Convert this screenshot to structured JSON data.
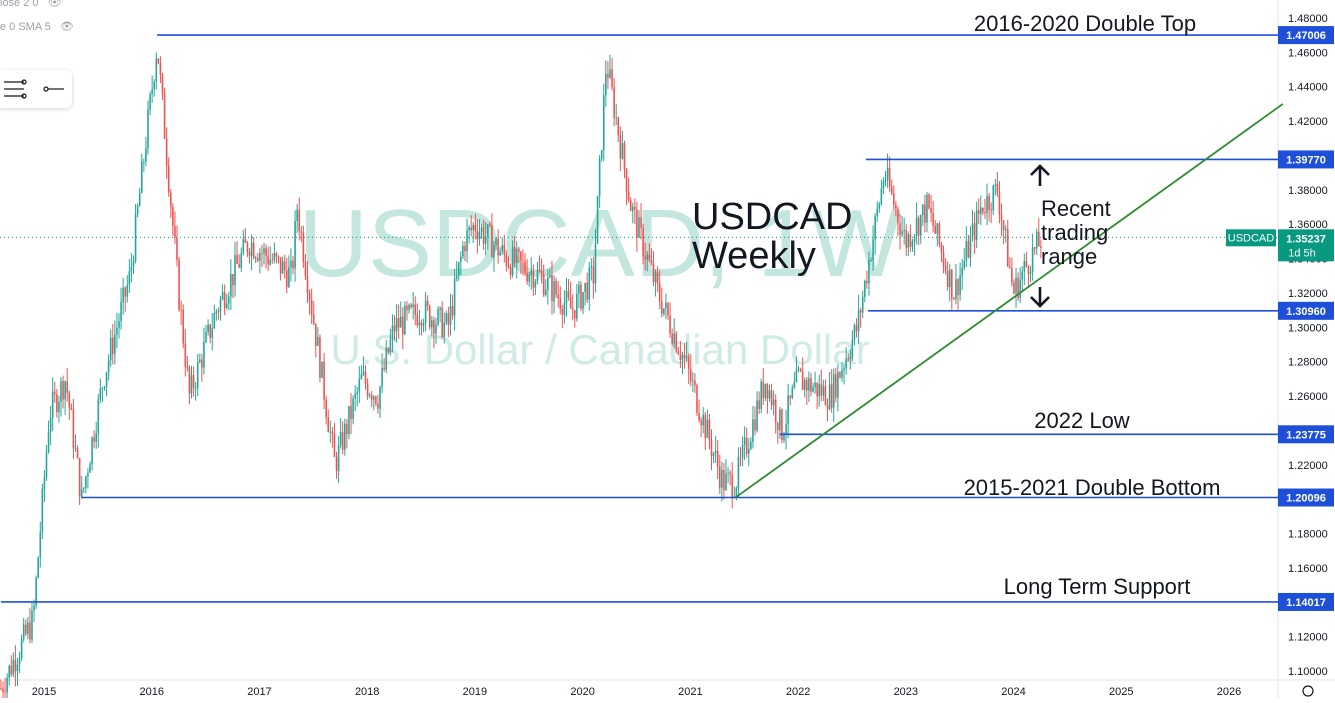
{
  "legend": {
    "close_label": "lose 2 0",
    "sma_label": "e 0 SMA 5"
  },
  "watermark": {
    "symbol": "USDCAD, 1W",
    "description": "U.S. Dollar / Canadian Dollar"
  },
  "price_tag": {
    "symbol": "USDCAD",
    "price": "1.35237",
    "countdown": "1d 5h",
    "color": "#089981"
  },
  "colors": {
    "up": "#26a69a",
    "down": "#ef5350",
    "hline": "#1e4fd8",
    "trendline": "#2e8b2e",
    "axis_text": "#131722"
  },
  "chart_data": {
    "type": "candlestick",
    "title": "USDCAD\nWeekly",
    "x_axis": {
      "ticks": [
        "2015",
        "2016",
        "2017",
        "2018",
        "2019",
        "2020",
        "2021",
        "2022",
        "2023",
        "2024",
        "2025",
        "2026"
      ]
    },
    "y_axis": {
      "range": [
        1.09,
        1.484
      ],
      "ticks": [
        "1.48000",
        "1.46000",
        "1.44000",
        "1.42000",
        "1.40000",
        "1.38000",
        "1.36000",
        "1.34000",
        "1.32000",
        "1.30000",
        "1.28000",
        "1.26000",
        "1.24000",
        "1.22000",
        "1.20000",
        "1.18000",
        "1.16000",
        "1.14000",
        "1.12000",
        "1.10000"
      ]
    },
    "price_path": [
      [
        2014.6,
        1.09
      ],
      [
        2014.9,
        1.13
      ],
      [
        2015.05,
        1.25
      ],
      [
        2015.2,
        1.27
      ],
      [
        2015.35,
        1.2
      ],
      [
        2015.55,
        1.27
      ],
      [
        2015.8,
        1.33
      ],
      [
        2016.05,
        1.465
      ],
      [
        2016.25,
        1.32
      ],
      [
        2016.35,
        1.26
      ],
      [
        2016.6,
        1.31
      ],
      [
        2016.9,
        1.35
      ],
      [
        2017.3,
        1.33
      ],
      [
        2017.35,
        1.37
      ],
      [
        2017.7,
        1.22
      ],
      [
        2017.95,
        1.27
      ],
      [
        2018.1,
        1.26
      ],
      [
        2018.25,
        1.3
      ],
      [
        2018.5,
        1.31
      ],
      [
        2018.75,
        1.3
      ],
      [
        2018.9,
        1.35
      ],
      [
        2019.0,
        1.36
      ],
      [
        2019.3,
        1.34
      ],
      [
        2019.6,
        1.33
      ],
      [
        2019.9,
        1.31
      ],
      [
        2020.1,
        1.33
      ],
      [
        2020.22,
        1.455
      ],
      [
        2020.45,
        1.37
      ],
      [
        2020.7,
        1.32
      ],
      [
        2020.95,
        1.28
      ],
      [
        2021.3,
        1.21
      ],
      [
        2021.42,
        1.21
      ],
      [
        2021.7,
        1.27
      ],
      [
        2021.85,
        1.24
      ],
      [
        2022.0,
        1.27
      ],
      [
        2022.3,
        1.26
      ],
      [
        2022.55,
        1.3
      ],
      [
        2022.8,
        1.39
      ],
      [
        2023.0,
        1.35
      ],
      [
        2023.2,
        1.37
      ],
      [
        2023.45,
        1.32
      ],
      [
        2023.7,
        1.37
      ],
      [
        2023.85,
        1.38
      ],
      [
        2024.0,
        1.32
      ],
      [
        2024.15,
        1.34
      ],
      [
        2024.27,
        1.352
      ]
    ],
    "annotations": {
      "horizontal_lines": [
        {
          "price": 1.47006,
          "label": "2016-2020 Double Top",
          "price_label": "1.47006",
          "from": 2016.05
        },
        {
          "price": 1.3977,
          "label": "",
          "price_label": "1.39770",
          "from": 2022.63
        },
        {
          "price": 1.3096,
          "label": "",
          "price_label": "1.30960",
          "from": 2022.65
        },
        {
          "price": 1.23775,
          "label": "2022 Low",
          "price_label": "1.23775",
          "from": 2021.83
        },
        {
          "price": 1.20096,
          "label": "2015-2021 Double Bottom",
          "price_label": "1.20096",
          "from": 2015.35
        },
        {
          "price": 1.14017,
          "label": "Long Term Support",
          "price_label": "1.14017",
          "from": 2014.6
        }
      ],
      "trendline": {
        "start": [
          2021.42,
          1.201
        ],
        "end": [
          2026.5,
          1.43
        ]
      },
      "range_text": [
        "Recent",
        "trading",
        "range"
      ]
    }
  }
}
